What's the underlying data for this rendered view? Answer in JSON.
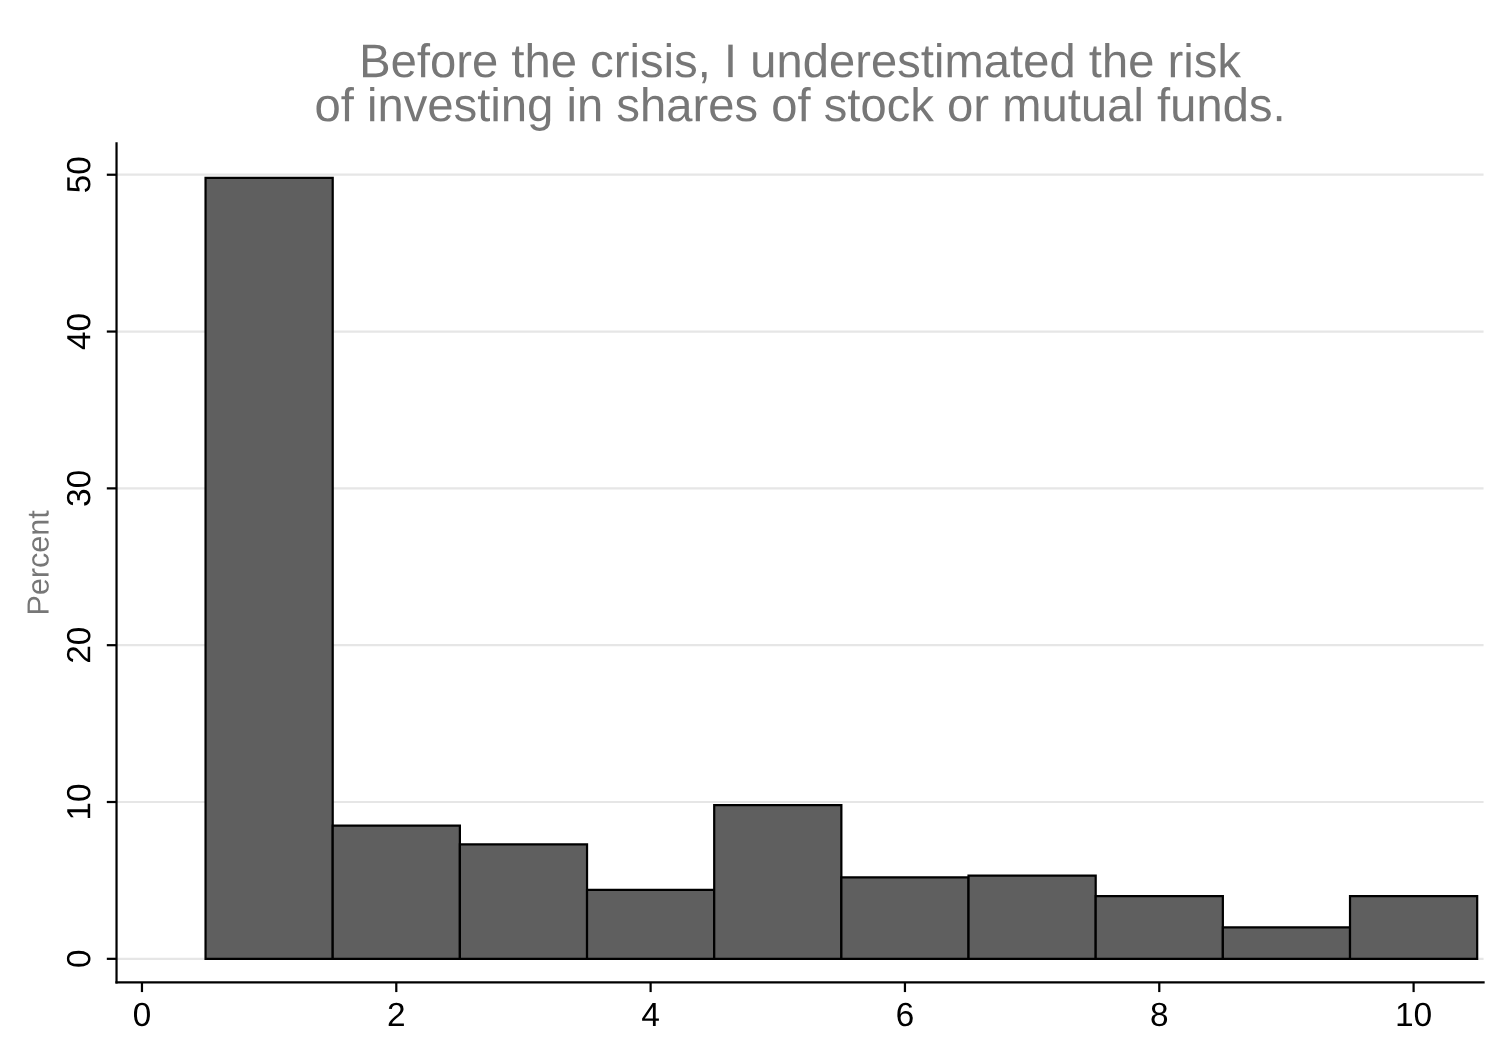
{
  "chart_data": {
    "type": "histogram",
    "title": "Before the crisis, I underestimated the risk\nof investing in shares of stock or mutual funds.",
    "ylabel": "Percent",
    "bins": [
      0.5,
      1.5,
      2.5,
      3.5,
      4.5,
      5.5,
      6.5,
      7.5,
      8.5,
      9.5,
      10.5
    ],
    "values": [
      49.8,
      8.5,
      7.3,
      4.4,
      9.8,
      5.2,
      5.3,
      4.0,
      2.0,
      4.0
    ],
    "color": "#5f5f5f",
    "xlim": [
      -0.2,
      10.55
    ],
    "ylim": [
      -1.5,
      52
    ],
    "xticks": [
      0,
      2,
      4,
      6,
      8,
      10
    ],
    "yticks": [
      0,
      10,
      20,
      30,
      40,
      50
    ],
    "grid": "y"
  }
}
